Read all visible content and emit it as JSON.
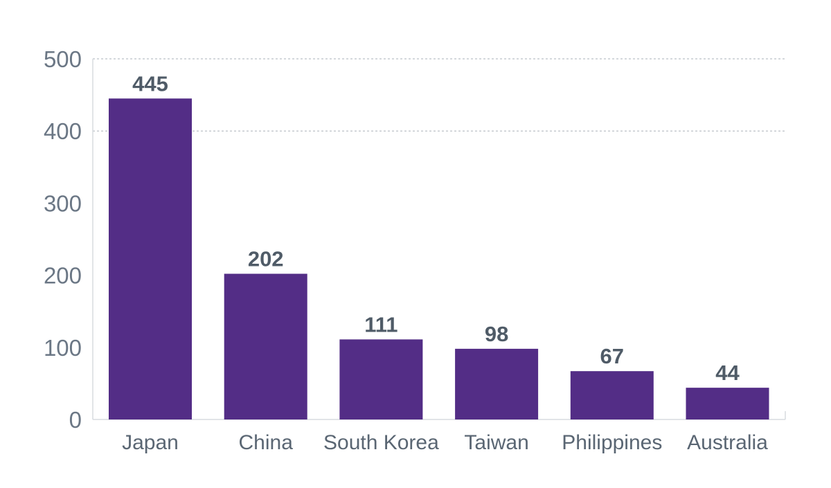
{
  "chart_data": {
    "type": "bar",
    "categories": [
      "Japan",
      "China",
      "South Korea",
      "Taiwan",
      "Philippines",
      "Australia"
    ],
    "values": [
      445,
      202,
      111,
      98,
      67,
      44
    ],
    "data_labels": [
      "445",
      "202",
      "111",
      "98",
      "67",
      "44"
    ],
    "y_ticks": [
      0,
      100,
      200,
      300,
      400,
      500
    ],
    "y_tick_labels": [
      "0",
      "100",
      "200",
      "300",
      "400",
      "500"
    ],
    "ylim": [
      0,
      500
    ],
    "gridlines": [
      400,
      500
    ],
    "grid": "dashed",
    "title": "",
    "xlabel": "",
    "ylabel": "",
    "colors": {
      "bar": "#532d86",
      "grid": "#a9b0b8",
      "axis": "#d7dbdf"
    }
  }
}
